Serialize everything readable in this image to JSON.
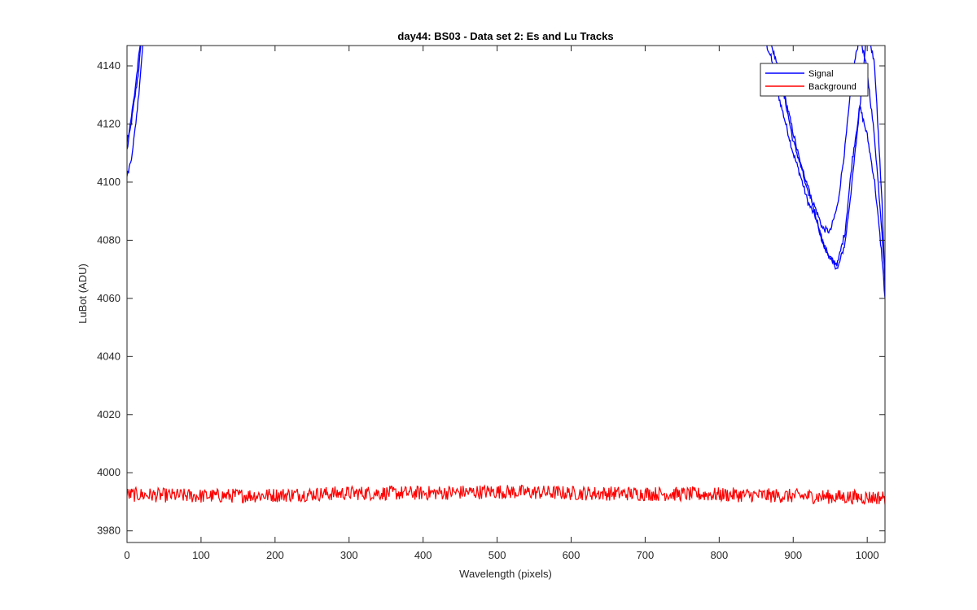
{
  "chart_data": {
    "type": "line",
    "title": "day44: BS03 - Data set 2: Es and Lu Tracks",
    "xlabel": "Wavelength (pixels)",
    "ylabel": "LuBot (ADU)",
    "xlim": [
      0,
      1024
    ],
    "ylim": [
      3976,
      4147
    ],
    "xticks": [
      0,
      100,
      200,
      300,
      400,
      500,
      600,
      700,
      800,
      900,
      1000
    ],
    "yticks": [
      3980,
      4000,
      4020,
      4040,
      4060,
      4080,
      4100,
      4120,
      4140
    ],
    "grid": false,
    "legend": {
      "placement": "top-right",
      "entries": [
        "Signal",
        "Background"
      ]
    },
    "series": [
      {
        "name": "Signal",
        "color": "#0000ff",
        "tracks": [
          {
            "x": [
              0,
              5,
              10,
              15,
              20,
              25,
              860,
              870,
              880,
              890,
              900,
              910,
              920,
              930,
              940,
              950,
              960,
              970,
              980,
              990,
              1000,
              1010,
              1020,
              1024
            ],
            "y": [
              4111,
              4119,
              4128,
              4137,
              4150,
              4165,
              4150,
              4143,
              4130,
              4120,
              4110,
              4102,
              4093,
              4088,
              4079,
              4074,
              4070,
              4079,
              4101,
              4126,
              4154,
              4140,
              4093,
              4064
            ]
          },
          {
            "x": [
              0,
              5,
              10,
              15,
              20,
              25,
              870,
              880,
              890,
              900,
              910,
              920,
              930,
              940,
              950,
              960,
              970,
              980,
              990,
              1000,
              1010,
              1020,
              1024
            ],
            "y": [
              4114,
              4121,
              4130,
              4141,
              4152,
              4167,
              4148,
              4138,
              4128,
              4117,
              4106,
              4097,
              4091,
              4084,
              4083,
              4092,
              4112,
              4137,
              4151,
              4138,
              4115,
              4083,
              4067
            ]
          },
          {
            "x": [
              0,
              5,
              10,
              15,
              20,
              25,
              880,
              890,
              900,
              910,
              920,
              930,
              940,
              950,
              960,
              970,
              980,
              990,
              1000,
              1010,
              1020,
              1024
            ],
            "y": [
              4102,
              4107,
              4116,
              4128,
              4143,
              4160,
              4138,
              4127,
              4114,
              4106,
              4098,
              4089,
              4079,
              4073,
              4072,
              4083,
              4108,
              4126,
              4116,
              4100,
              4074,
              4060
            ]
          }
        ]
      },
      {
        "name": "Background",
        "color": "#ff0000",
        "x": [
          0,
          100,
          200,
          300,
          400,
          500,
          600,
          700,
          800,
          900,
          1000,
          1024
        ],
        "y": [
          3992.5,
          3992,
          3992.3,
          3993,
          3993,
          3993.5,
          3993,
          3992.8,
          3992.5,
          3992,
          3991.5,
          3991.5
        ],
        "noise_amplitude": 2.5
      }
    ]
  }
}
